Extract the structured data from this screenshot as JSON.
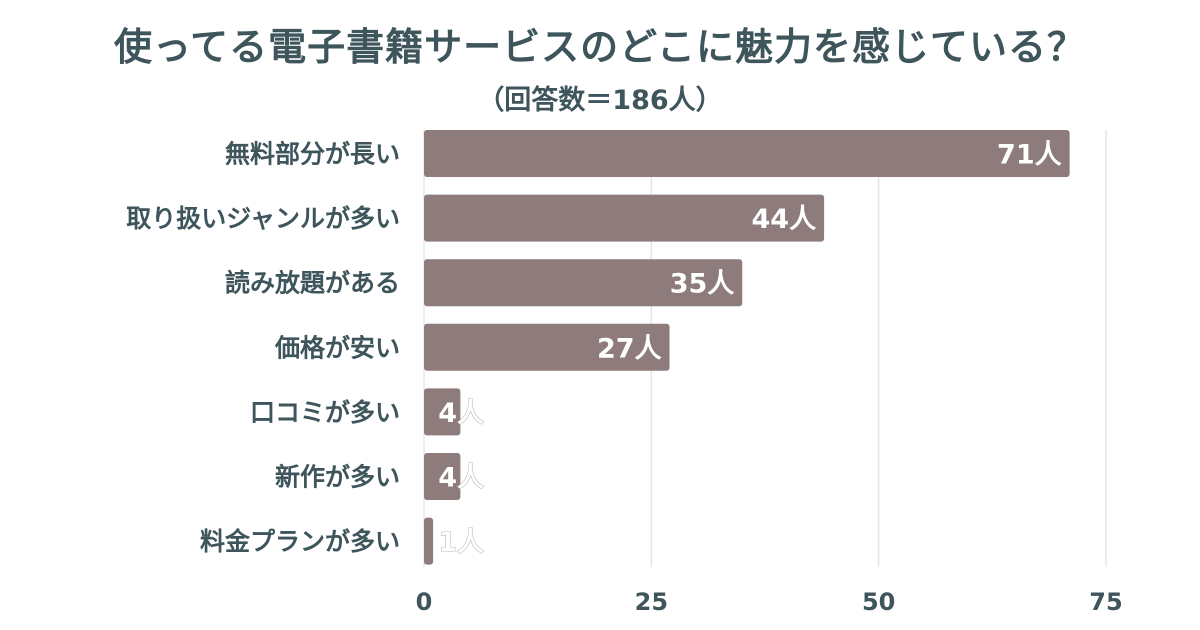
{
  "chart_data": {
    "type": "bar",
    "orientation": "horizontal",
    "title": "使ってる電子書籍サービスのどこに魅力を感じている？",
    "subtitle": "（回答数＝186人）",
    "categories": [
      "無料部分が長い",
      "取り扱いジャンルが多い",
      "読み放題がある",
      "価格が安い",
      "口コミが多い",
      "新作が多い",
      "料金プランが多い"
    ],
    "values": [
      71,
      44,
      35,
      27,
      4,
      4,
      1
    ],
    "data_labels": [
      "71人",
      "44人",
      "35人",
      "27人",
      "4人",
      "4人",
      "1人"
    ],
    "xlim": [
      0,
      75
    ],
    "xticks": [
      "0",
      "25",
      "50",
      "75"
    ],
    "grid": true,
    "colors": {
      "bar": "#8e7b7b",
      "text": "#3e555c",
      "grid": "#e6e6e6",
      "data_label": "#ffffff"
    }
  }
}
